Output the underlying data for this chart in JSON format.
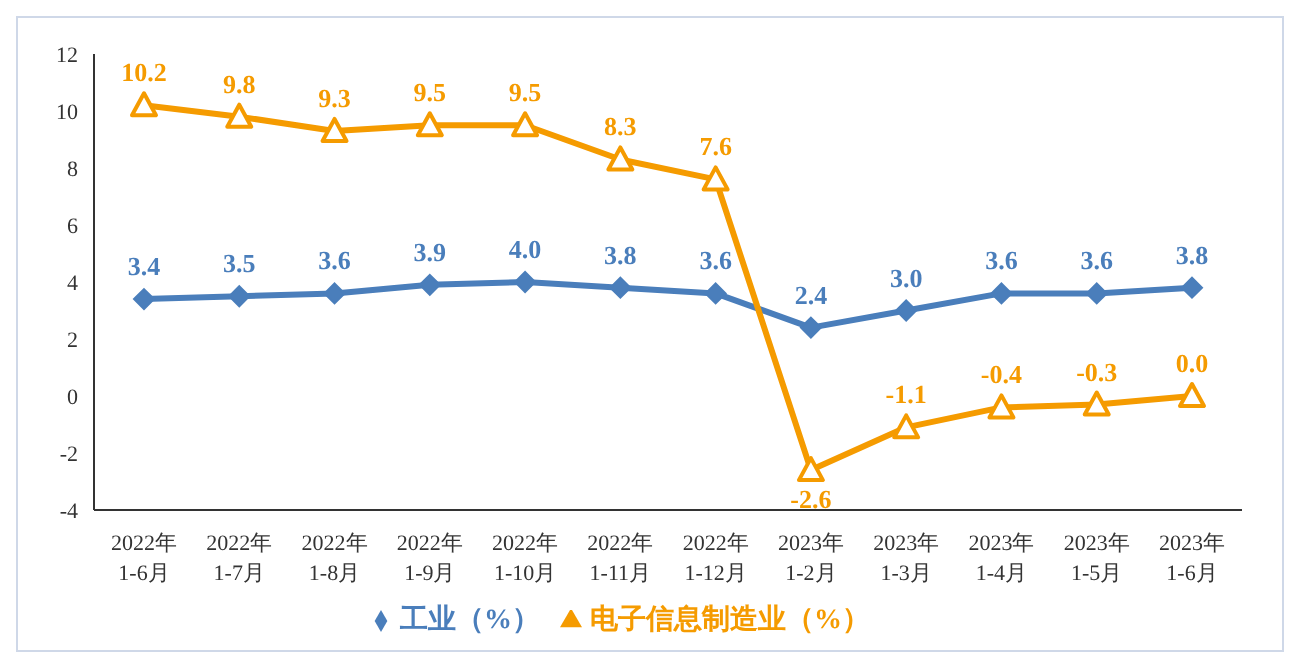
{
  "chart_data": {
    "type": "line",
    "categories": [
      "2022年\n1-6月",
      "2022年\n1-7月",
      "2022年\n1-8月",
      "2022年\n1-9月",
      "2022年\n1-10月",
      "2022年\n1-11月",
      "2022年\n1-12月",
      "2023年\n1-2月",
      "2023年\n1-3月",
      "2023年\n1-4月",
      "2023年\n1-5月",
      "2023年\n1-6月"
    ],
    "series": [
      {
        "name": "工业（%）",
        "color": "#4a7ebb",
        "marker": "diamond",
        "values": [
          3.4,
          3.5,
          3.6,
          3.9,
          4.0,
          3.8,
          3.6,
          2.4,
          3.0,
          3.6,
          3.6,
          3.8
        ],
        "value_labels": [
          "3.4",
          "3.5",
          "3.6",
          "3.9",
          "4.0",
          "3.8",
          "3.6",
          "2.4",
          "3.0",
          "3.6",
          "3.6",
          "3.8"
        ]
      },
      {
        "name": "电子信息制造业（%）",
        "color": "#f59b00",
        "marker": "triangle",
        "values": [
          10.2,
          9.8,
          9.3,
          9.5,
          9.5,
          8.3,
          7.6,
          -2.6,
          -1.1,
          -0.4,
          -0.3,
          0.0
        ],
        "value_labels": [
          "10.2",
          "9.8",
          "9.3",
          "9.5",
          "9.5",
          "8.3",
          "7.6",
          "-2.6",
          "-1.1",
          "-0.4",
          "-0.3",
          "0.0"
        ]
      }
    ],
    "ylim": [
      -4,
      12
    ],
    "yticks": [
      -4,
      -2,
      0,
      2,
      4,
      6,
      8,
      10,
      12
    ],
    "legend": "bottom",
    "line_style": "solid"
  }
}
